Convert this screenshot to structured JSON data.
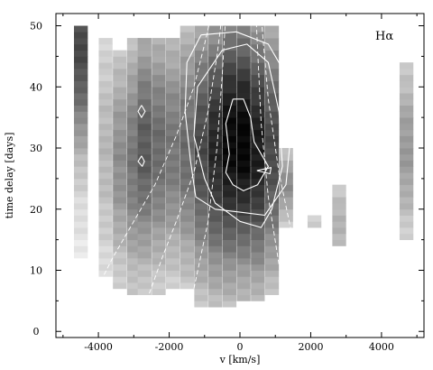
{
  "chart_data": {
    "type": "heatmap",
    "title": "",
    "panel_label": "Hα",
    "xlabel": "v [km/s]",
    "ylabel": "time delay [days]",
    "xlim": [
      -5200,
      5200
    ],
    "ylim": [
      -1,
      52
    ],
    "x_ticks": [
      -4000,
      -2000,
      0,
      2000,
      4000
    ],
    "x_tick_labels": [
      "-4000",
      "-2000",
      "0",
      "2000",
      "4000"
    ],
    "y_ticks": [
      0,
      10,
      20,
      30,
      40,
      50
    ],
    "y_tick_labels": [
      "0",
      "10",
      "20",
      "30",
      "40",
      "50"
    ],
    "grid": false,
    "colormap": "grayscale (white = low, black = high)",
    "bin_width_kms": 380,
    "columns": [
      {
        "v": -4500,
        "d_min": 12,
        "d_max": 50,
        "peak_delay": 47,
        "peak_level": 0.7
      },
      {
        "v": -3800,
        "d_min": 9,
        "d_max": 48,
        "peak_delay": 30,
        "peak_level": 0.22
      },
      {
        "v": -3400,
        "d_min": 7,
        "d_max": 46,
        "peak_delay": 28,
        "peak_level": 0.4
      },
      {
        "v": -3000,
        "d_min": 6,
        "d_max": 48,
        "peak_delay": 28,
        "peak_level": 0.5
      },
      {
        "v": -2700,
        "d_min": 6,
        "d_max": 48,
        "peak_delay": 30,
        "peak_level": 0.62
      },
      {
        "v": -2300,
        "d_min": 6,
        "d_max": 48,
        "peak_delay": 30,
        "peak_level": 0.55
      },
      {
        "v": -1900,
        "d_min": 7,
        "d_max": 48,
        "peak_delay": 30,
        "peak_level": 0.5
      },
      {
        "v": -1500,
        "d_min": 7,
        "d_max": 50,
        "peak_delay": 30,
        "peak_level": 0.55
      },
      {
        "v": -1100,
        "d_min": 4,
        "d_max": 50,
        "peak_delay": 30,
        "peak_level": 0.7
      },
      {
        "v": -700,
        "d_min": 4,
        "d_max": 50,
        "peak_delay": 30,
        "peak_level": 0.85
      },
      {
        "v": -300,
        "d_min": 4,
        "d_max": 50,
        "peak_delay": 31,
        "peak_level": 0.98
      },
      {
        "v": 100,
        "d_min": 5,
        "d_max": 50,
        "peak_delay": 31,
        "peak_level": 1.0
      },
      {
        "v": 500,
        "d_min": 5,
        "d_max": 50,
        "peak_delay": 30,
        "peak_level": 0.9
      },
      {
        "v": 900,
        "d_min": 6,
        "d_max": 50,
        "peak_delay": 30,
        "peak_level": 0.7
      },
      {
        "v": 1300,
        "d_min": 17,
        "d_max": 30,
        "peak_delay": 24,
        "peak_level": 0.4
      },
      {
        "v": 2100,
        "d_min": 17,
        "d_max": 19,
        "peak_delay": 18,
        "peak_level": 0.12
      },
      {
        "v": 2800,
        "d_min": 14,
        "d_max": 24,
        "peak_delay": 18,
        "peak_level": 0.25
      },
      {
        "v": 4700,
        "d_min": 15,
        "d_max": 44,
        "peak_delay": 30,
        "peak_level": 0.35
      }
    ],
    "contours": [
      {
        "name": "inner",
        "points": [
          [
            -200,
            38
          ],
          [
            -400,
            34
          ],
          [
            -300,
            29
          ],
          [
            -400,
            26
          ],
          [
            -200,
            24
          ],
          [
            100,
            23
          ],
          [
            500,
            24
          ],
          [
            800,
            27
          ],
          [
            400,
            31
          ],
          [
            300,
            35
          ],
          [
            100,
            38
          ],
          [
            -200,
            38
          ]
        ]
      },
      {
        "name": "inner-tip",
        "points": [
          [
            480,
            26.3
          ],
          [
            880,
            26.8
          ],
          [
            850,
            25.8
          ],
          [
            480,
            26.3
          ]
        ]
      },
      {
        "name": "middle",
        "points": [
          [
            -500,
            46
          ],
          [
            -1200,
            40
          ],
          [
            -1300,
            32
          ],
          [
            -1000,
            25
          ],
          [
            -700,
            21
          ],
          [
            0,
            18
          ],
          [
            600,
            17
          ],
          [
            900,
            20
          ],
          [
            1200,
            27
          ],
          [
            1100,
            36
          ],
          [
            800,
            44
          ],
          [
            200,
            47
          ],
          [
            -500,
            46
          ]
        ]
      },
      {
        "name": "outer",
        "points": [
          [
            -1100,
            48.5
          ],
          [
            -1500,
            44
          ],
          [
            -1550,
            36
          ],
          [
            -1400,
            28
          ],
          [
            -1250,
            22
          ],
          [
            -700,
            20
          ],
          [
            0,
            19.5
          ],
          [
            700,
            19
          ],
          [
            1300,
            24
          ],
          [
            1450,
            33
          ],
          [
            1300,
            42
          ],
          [
            800,
            47
          ],
          [
            -100,
            49
          ],
          [
            -1100,
            48.5
          ]
        ]
      },
      {
        "name": "small-upper",
        "points": [
          [
            -2780,
            37
          ],
          [
            -2880,
            36
          ],
          [
            -2780,
            35
          ],
          [
            -2680,
            36
          ],
          [
            -2780,
            37
          ]
        ]
      },
      {
        "name": "small-lower",
        "points": [
          [
            -2780,
            28.7
          ],
          [
            -2880,
            27.8
          ],
          [
            -2760,
            27
          ],
          [
            -2700,
            27.8
          ],
          [
            -2780,
            28.7
          ]
        ]
      }
    ],
    "dashed_curves": [
      {
        "name": "envelope-1",
        "points": [
          [
            -4300,
            4
          ],
          [
            -3600,
            12
          ],
          [
            -3000,
            18
          ],
          [
            -2400,
            24
          ],
          [
            -1800,
            32
          ],
          [
            -1300,
            40
          ],
          [
            -1000,
            47
          ],
          [
            -800,
            52
          ]
        ]
      },
      {
        "name": "envelope-2",
        "points": [
          [
            -2700,
            4
          ],
          [
            -2200,
            12
          ],
          [
            -1800,
            18
          ],
          [
            -1300,
            26
          ],
          [
            -900,
            36
          ],
          [
            -650,
            45
          ],
          [
            -500,
            52
          ]
        ]
      },
      {
        "name": "envelope-3",
        "points": [
          [
            -1300,
            7
          ],
          [
            -900,
            18
          ],
          [
            -650,
            30
          ],
          [
            -500,
            42
          ],
          [
            -400,
            52
          ]
        ]
      },
      {
        "name": "envelope-4",
        "points": [
          [
            2000,
            5
          ],
          [
            1500,
            15
          ],
          [
            1100,
            26
          ],
          [
            800,
            38
          ],
          [
            650,
            48
          ],
          [
            600,
            52
          ]
        ]
      },
      {
        "name": "envelope-5",
        "points": [
          [
            1100,
            11
          ],
          [
            800,
            22
          ],
          [
            600,
            34
          ],
          [
            500,
            46
          ],
          [
            450,
            52
          ]
        ]
      }
    ]
  }
}
